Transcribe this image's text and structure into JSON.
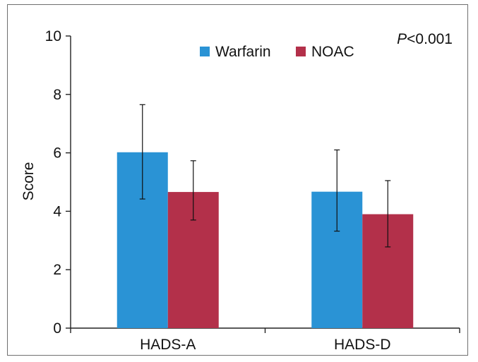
{
  "chart_data": {
    "type": "bar",
    "categories": [
      "HADS-A",
      "HADS-D"
    ],
    "series": [
      {
        "name": "Warfarin",
        "values": [
          6.02,
          4.67
        ],
        "error_low": [
          4.42,
          3.32
        ],
        "error_high": [
          7.65,
          6.1
        ],
        "color": "#2a93d5"
      },
      {
        "name": "NOAC",
        "values": [
          4.66,
          3.9
        ],
        "error_low": [
          3.7,
          2.78
        ],
        "error_high": [
          5.73,
          5.05
        ],
        "color": "#b3304a"
      }
    ],
    "ylabel": "Score",
    "xlabel": "",
    "ylim": [
      0,
      10
    ],
    "yticks": [
      0,
      2,
      4,
      6,
      8,
      10
    ],
    "annotation": {
      "italic": "P",
      "text": "<0.001"
    },
    "legend_position": "top",
    "grid": false
  }
}
